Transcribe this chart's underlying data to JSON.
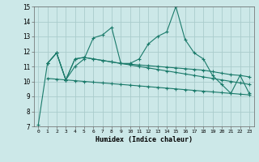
{
  "xlabel": "Humidex (Indice chaleur)",
  "background_color": "#cce8e8",
  "grid_color": "#aacccc",
  "line_color": "#1a7a6a",
  "xlim": [
    -0.5,
    23.5
  ],
  "ylim": [
    7,
    15
  ],
  "yticks": [
    7,
    8,
    9,
    10,
    11,
    12,
    13,
    14,
    15
  ],
  "xticks": [
    0,
    1,
    2,
    3,
    4,
    5,
    6,
    7,
    8,
    9,
    10,
    11,
    12,
    13,
    14,
    15,
    16,
    17,
    18,
    19,
    20,
    21,
    22,
    23
  ],
  "line1_x": [
    0,
    1,
    2,
    3,
    4,
    5,
    6,
    7,
    8,
    9,
    10,
    11,
    12,
    13,
    14,
    15,
    16,
    17,
    18,
    19,
    20,
    21,
    22,
    23
  ],
  "line1_y": [
    7.1,
    11.2,
    11.9,
    10.1,
    11.0,
    11.5,
    12.9,
    13.1,
    13.6,
    11.2,
    11.2,
    11.5,
    12.5,
    13.0,
    13.3,
    15.0,
    12.8,
    11.9,
    11.5,
    10.4,
    9.8,
    9.2,
    10.4,
    9.2
  ],
  "line2_x": [
    1,
    2,
    3,
    4,
    5,
    6,
    7,
    8,
    9,
    10,
    11,
    12,
    13,
    14,
    15,
    16,
    17,
    18,
    19,
    20,
    21,
    22,
    23
  ],
  "line2_y": [
    11.2,
    11.9,
    10.1,
    11.5,
    11.6,
    11.5,
    11.4,
    11.3,
    11.2,
    11.15,
    11.1,
    11.05,
    11.0,
    10.95,
    10.9,
    10.85,
    10.8,
    10.75,
    10.65,
    10.55,
    10.45,
    10.4,
    10.3
  ],
  "line3_x": [
    1,
    2,
    3,
    4,
    5,
    6,
    7,
    8,
    9,
    10,
    11,
    12,
    13,
    14,
    15,
    16,
    17,
    18,
    19,
    20,
    21,
    22,
    23
  ],
  "line3_y": [
    11.2,
    11.9,
    10.1,
    11.5,
    11.6,
    11.5,
    11.4,
    11.3,
    11.2,
    11.1,
    11.0,
    10.9,
    10.8,
    10.7,
    10.6,
    10.5,
    10.4,
    10.3,
    10.2,
    10.1,
    10.0,
    9.9,
    9.8
  ],
  "line4_x": [
    1,
    2,
    3,
    4,
    5,
    6,
    7,
    8,
    9,
    10,
    11,
    12,
    13,
    14,
    15,
    16,
    17,
    18,
    19,
    20,
    21,
    22,
    23
  ],
  "line4_y": [
    10.2,
    10.15,
    10.1,
    10.05,
    10.0,
    9.95,
    9.9,
    9.85,
    9.8,
    9.75,
    9.7,
    9.65,
    9.6,
    9.55,
    9.5,
    9.45,
    9.4,
    9.35,
    9.3,
    9.25,
    9.2,
    9.15,
    9.1
  ]
}
